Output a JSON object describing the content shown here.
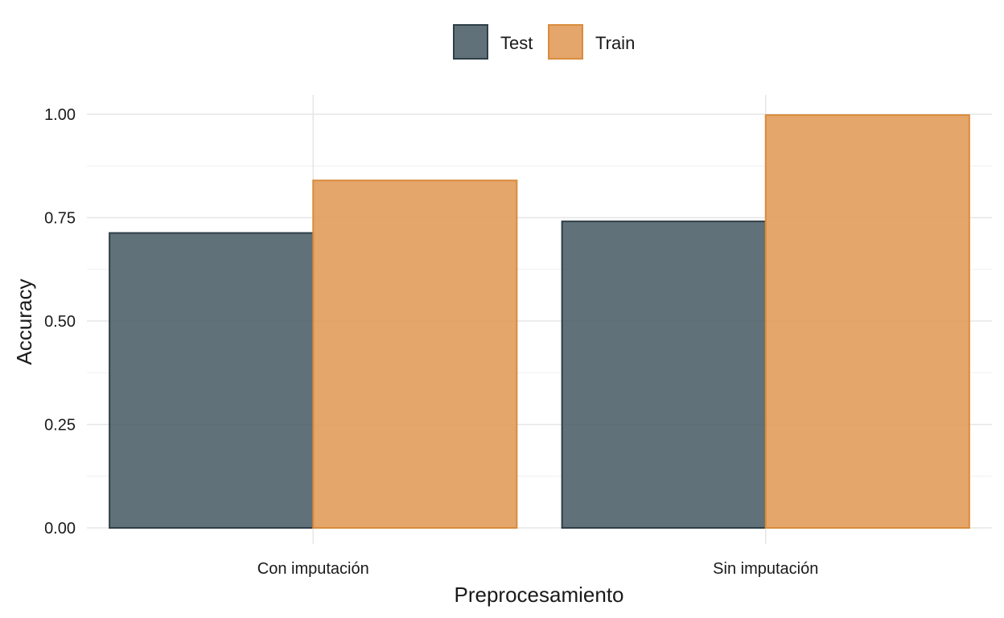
{
  "chart_data": {
    "type": "bar",
    "categories": [
      "Con imputación",
      "Sin imputación"
    ],
    "series": [
      {
        "name": "Test",
        "values": [
          0.713,
          0.741
        ],
        "color": "#4a5d66",
        "stroke": "#2f3f47"
      },
      {
        "name": "Train",
        "values": [
          0.84,
          0.998
        ],
        "color": "#e09a55",
        "stroke": "#d98c3c"
      }
    ],
    "xlabel": "Preprocesamiento",
    "ylabel": "Accuracy",
    "ylim": [
      0,
      1.0
    ],
    "yticks": [
      "0.00",
      "0.25",
      "0.50",
      "0.75",
      "1.00"
    ],
    "grid": true,
    "legend_position": "top"
  }
}
